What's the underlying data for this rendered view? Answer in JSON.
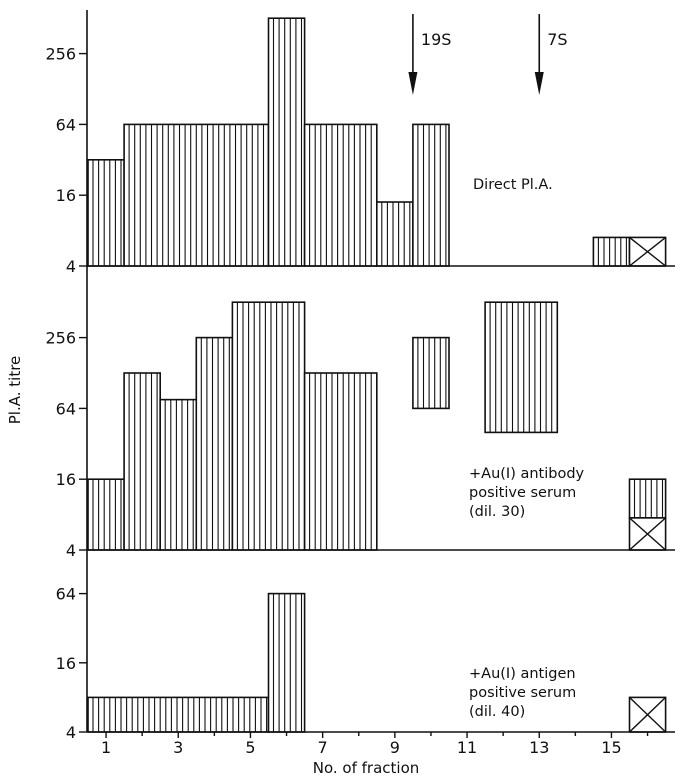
{
  "chart_data": {
    "type": "bar",
    "xlabel": "No. of fraction",
    "ylabel": "Pl.A. titre",
    "x_ticks": [
      "1",
      "3",
      "5",
      "7",
      "9",
      "11",
      "13",
      "15"
    ],
    "y_scale": "log2",
    "hatch": "vertical lines",
    "markers": [
      {
        "label": "19S",
        "fraction": 9.5
      },
      {
        "label": "7S",
        "fraction": 13
      }
    ],
    "panels": [
      {
        "id": "direct",
        "annotation": [
          "Direct Pl.A."
        ],
        "y_ticks": [
          4,
          16,
          64,
          256
        ],
        "ylim": [
          4,
          512
        ],
        "bars": [
          {
            "x": [
              0.5,
              1.5
            ],
            "low": 4,
            "high": 32
          },
          {
            "x": [
              1.5,
              5.5
            ],
            "low": 4,
            "high": 64
          },
          {
            "x": [
              5.5,
              6.5
            ],
            "low": 4,
            "high": 512
          },
          {
            "x": [
              6.5,
              8.5
            ],
            "low": 4,
            "high": 64
          },
          {
            "x": [
              8.5,
              9.5
            ],
            "low": 4,
            "high": 14
          },
          {
            "x": [
              9.5,
              10.5
            ],
            "low": 4,
            "high": 64
          },
          {
            "x": [
              14.5,
              15.5
            ],
            "low": 4,
            "high": 7
          }
        ],
        "crossed_boxes": [
          {
            "x": [
              15.5,
              16.5
            ],
            "low": 4,
            "high": 7
          }
        ]
      },
      {
        "id": "antibody",
        "annotation": [
          "+Au(I) antibody",
          "positive serum",
          "(dil. 30)"
        ],
        "y_ticks": [
          4,
          16,
          64,
          256
        ],
        "ylim": [
          4,
          512
        ],
        "bars": [
          {
            "x": [
              0.5,
              1.5
            ],
            "low": 4,
            "high": 16
          },
          {
            "x": [
              1.5,
              2.5
            ],
            "low": 4,
            "high": 128
          },
          {
            "x": [
              2.5,
              3.5
            ],
            "low": 4,
            "high": 76
          },
          {
            "x": [
              3.5,
              4.5
            ],
            "low": 4,
            "high": 256
          },
          {
            "x": [
              4.5,
              6.5
            ],
            "low": 4,
            "high": 512
          },
          {
            "x": [
              6.5,
              8.5
            ],
            "low": 4,
            "high": 128
          },
          {
            "x": [
              9.5,
              10.5
            ],
            "low": 64,
            "high": 256
          },
          {
            "x": [
              11.5,
              13.5
            ],
            "low": 40,
            "high": 512
          },
          {
            "x": [
              15.5,
              16.5
            ],
            "low": 7.5,
            "high": 16
          }
        ],
        "crossed_boxes": [
          {
            "x": [
              15.5,
              16.5
            ],
            "low": 4,
            "high": 7.5
          }
        ]
      },
      {
        "id": "antigen",
        "annotation": [
          "+Au(I) antigen",
          "positive serum",
          "(dil. 40)"
        ],
        "y_ticks": [
          4,
          16,
          64
        ],
        "ylim": [
          4,
          96
        ],
        "bars": [
          {
            "x": [
              0.5,
              5.5
            ],
            "low": 4,
            "high": 8
          },
          {
            "x": [
              5.5,
              6.5
            ],
            "low": 4,
            "high": 64
          }
        ],
        "crossed_boxes": [
          {
            "x": [
              15.5,
              16.5
            ],
            "low": 4,
            "high": 8
          }
        ]
      }
    ]
  }
}
